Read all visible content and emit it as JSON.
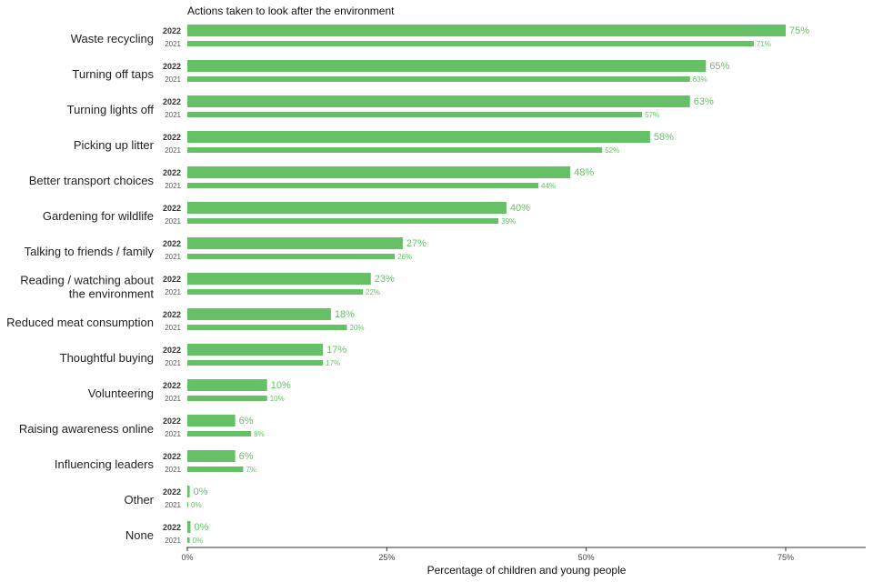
{
  "chart_data": {
    "type": "bar",
    "orientation": "horizontal",
    "title": "Actions taken to look after the environment",
    "xlabel": "Percentage of children and young people",
    "ylabel": "",
    "xlim": [
      0,
      85
    ],
    "x_ticks": [
      0,
      25,
      50,
      75
    ],
    "x_tick_labels": [
      "0%",
      "25%",
      "50%",
      "75%"
    ],
    "grid": false,
    "bar_color": "#66c166",
    "categories": [
      [
        "Waste recycling"
      ],
      [
        "Turning off taps"
      ],
      [
        "Turning lights off"
      ],
      [
        "Picking up litter"
      ],
      [
        "Better transport choices"
      ],
      [
        "Gardening for wildlife"
      ],
      [
        "Talking to friends / family"
      ],
      [
        "Reading / watching about",
        "the environment"
      ],
      [
        "Reduced meat consumption"
      ],
      [
        "Thoughtful buying"
      ],
      [
        "Volunteering"
      ],
      [
        "Raising awareness online"
      ],
      [
        "Influencing leaders"
      ],
      [
        "Other"
      ],
      [
        "None"
      ]
    ],
    "series": [
      {
        "name": "2022",
        "values": [
          75,
          65,
          63,
          58,
          48,
          40,
          27,
          23,
          18,
          17,
          10,
          6,
          6,
          0.3,
          0.4
        ],
        "labels": [
          "75%",
          "65%",
          "63%",
          "58%",
          "48%",
          "40%",
          "27%",
          "23%",
          "18%",
          "17%",
          "10%",
          "6%",
          "6%",
          "0%",
          "0%"
        ]
      },
      {
        "name": "2021",
        "values": [
          71,
          63,
          57,
          52,
          44,
          39,
          26,
          22,
          20,
          17,
          10,
          8,
          7,
          0.1,
          0.3
        ],
        "labels": [
          "71%",
          "63%",
          "57%",
          "52%",
          "44%",
          "39%",
          "26%",
          "22%",
          "20%",
          "17%",
          "10%",
          "8%",
          "7%",
          "0%",
          "0%"
        ]
      }
    ]
  }
}
